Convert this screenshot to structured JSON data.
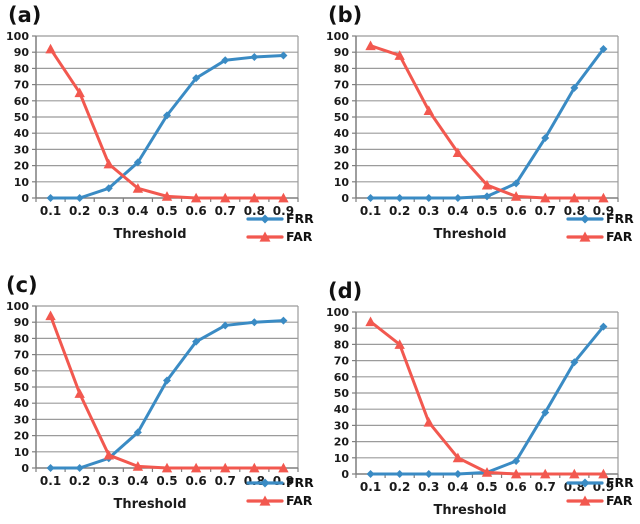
{
  "figure": {
    "background": "#ffffff",
    "layout": "2x2-grid"
  },
  "colors": {
    "frr": "#3a8bc4",
    "far": "#f2584f",
    "grid": "#9b9b9b",
    "axis": "#7f7f7f",
    "text": "#1b1b1b"
  },
  "chart_data": [
    {
      "panel_label": "(a)",
      "type": "line",
      "x": [
        "0.1",
        "0.2",
        "0.3",
        "0.4",
        "0.5",
        "0.6",
        "0.7",
        "0.8",
        "0.9"
      ],
      "xlabel": "Threshold",
      "ylabel": "",
      "ylim": [
        0,
        100
      ],
      "ytick_step": 10,
      "grid": true,
      "legend_position": "bottom-right",
      "series": [
        {
          "name": "FRR",
          "color": "#3a8bc4",
          "marker": "diamond",
          "values": [
            0,
            0,
            6,
            22,
            51,
            74,
            85,
            87,
            88
          ]
        },
        {
          "name": "FAR",
          "color": "#f2584f",
          "marker": "triangle",
          "values": [
            92,
            65,
            21,
            6,
            1,
            0,
            0,
            0,
            0
          ]
        }
      ]
    },
    {
      "panel_label": "(b)",
      "type": "line",
      "x": [
        "0.1",
        "0.2",
        "0.3",
        "0.4",
        "0.5",
        "0.6",
        "0.7",
        "0.8",
        "0.9"
      ],
      "xlabel": "Threshold",
      "ylabel": "",
      "ylim": [
        0,
        100
      ],
      "ytick_step": 10,
      "grid": true,
      "legend_position": "bottom-right",
      "series": [
        {
          "name": "FRR",
          "color": "#3a8bc4",
          "marker": "diamond",
          "values": [
            0,
            0,
            0,
            0,
            1,
            9,
            37,
            68,
            92
          ]
        },
        {
          "name": "FAR",
          "color": "#f2584f",
          "marker": "triangle",
          "values": [
            94,
            88,
            54,
            28,
            8,
            1,
            0,
            0,
            0
          ]
        }
      ]
    },
    {
      "panel_label": "(c)",
      "type": "line",
      "x": [
        "0.1",
        "0.2",
        "0.3",
        "0.4",
        "0.5",
        "0.6",
        "0.7",
        "0.8",
        "0.9"
      ],
      "xlabel": "Threshold",
      "ylabel": "",
      "ylim": [
        0,
        100
      ],
      "ytick_step": 10,
      "grid": true,
      "legend_position": "bottom-right",
      "series": [
        {
          "name": "FRR",
          "color": "#3a8bc4",
          "marker": "diamond",
          "values": [
            0,
            0,
            6,
            22,
            54,
            78,
            88,
            90,
            91
          ]
        },
        {
          "name": "FAR",
          "color": "#f2584f",
          "marker": "triangle",
          "values": [
            94,
            46,
            8,
            1,
            0,
            0,
            0,
            0,
            0
          ]
        }
      ]
    },
    {
      "panel_label": "(d)",
      "type": "line",
      "x": [
        "0.1",
        "0.2",
        "0.3",
        "0.4",
        "0.5",
        "0.6",
        "0.7",
        "0.8",
        "0.9"
      ],
      "xlabel": "Threshold",
      "ylabel": "",
      "ylim": [
        0,
        100
      ],
      "ytick_step": 10,
      "grid": true,
      "legend_position": "bottom-right",
      "series": [
        {
          "name": "FRR",
          "color": "#3a8bc4",
          "marker": "diamond",
          "values": [
            0,
            0,
            0,
            0,
            1,
            8,
            38,
            69,
            91
          ]
        },
        {
          "name": "FAR",
          "color": "#f2584f",
          "marker": "triangle",
          "values": [
            94,
            80,
            32,
            10,
            1,
            0,
            0,
            0,
            0
          ]
        }
      ]
    }
  ]
}
